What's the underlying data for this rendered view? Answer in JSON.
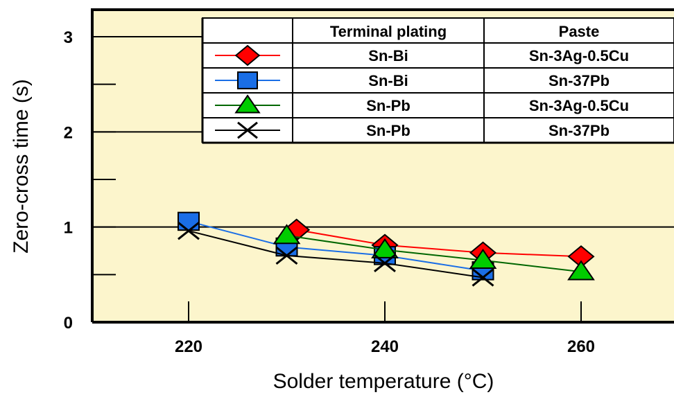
{
  "chart_data": {
    "type": "line",
    "title": "",
    "xlabel": "Solder temperature (°C)",
    "ylabel": "Zero-cross time (s)",
    "xlim": [
      210,
      270
    ],
    "ylim": [
      0,
      3.3
    ],
    "x_ticks": [
      220,
      240,
      260
    ],
    "y_ticks": [
      0,
      0.5,
      1,
      1.5,
      2,
      2.5,
      3
    ],
    "y_tick_labels": [
      {
        "value": 0,
        "label": "0"
      },
      {
        "value": 1,
        "label": "1"
      },
      {
        "value": 2,
        "label": "2"
      },
      {
        "value": 3,
        "label": "3"
      }
    ],
    "grid": "horizontal lines at 1, 2, 3",
    "plot_background": "#fcf5cc",
    "legend": {
      "placement": "top-right",
      "headers": [
        "Terminal plating",
        "Paste"
      ]
    },
    "series": [
      {
        "plating": "Sn-Bi",
        "paste": "Sn-3Ag-0.5Cu",
        "color": "#ff0000",
        "fill": "#ff0000",
        "marker": "diamond",
        "x": [
          231,
          240,
          250,
          260
        ],
        "y": [
          0.97,
          0.81,
          0.73,
          0.69
        ]
      },
      {
        "plating": "Sn-Bi",
        "paste": "Sn-37Pb",
        "color": "#1a6ee6",
        "fill": "#1a6ee6",
        "marker": "square",
        "x": [
          220,
          230,
          240,
          250
        ],
        "y": [
          1.06,
          0.79,
          0.7,
          0.54
        ]
      },
      {
        "plating": "Sn-Pb",
        "paste": "Sn-3Ag-0.5Cu",
        "color": "#006600",
        "fill": "#00cc00",
        "marker": "triangle",
        "x": [
          230,
          240,
          250,
          260
        ],
        "y": [
          0.91,
          0.76,
          0.65,
          0.53
        ]
      },
      {
        "plating": "Sn-Pb",
        "paste": "Sn-37Pb",
        "color": "#000000",
        "fill": "none",
        "marker": "x",
        "x": [
          220,
          230,
          240,
          250
        ],
        "y": [
          0.96,
          0.7,
          0.62,
          0.47
        ]
      }
    ]
  }
}
